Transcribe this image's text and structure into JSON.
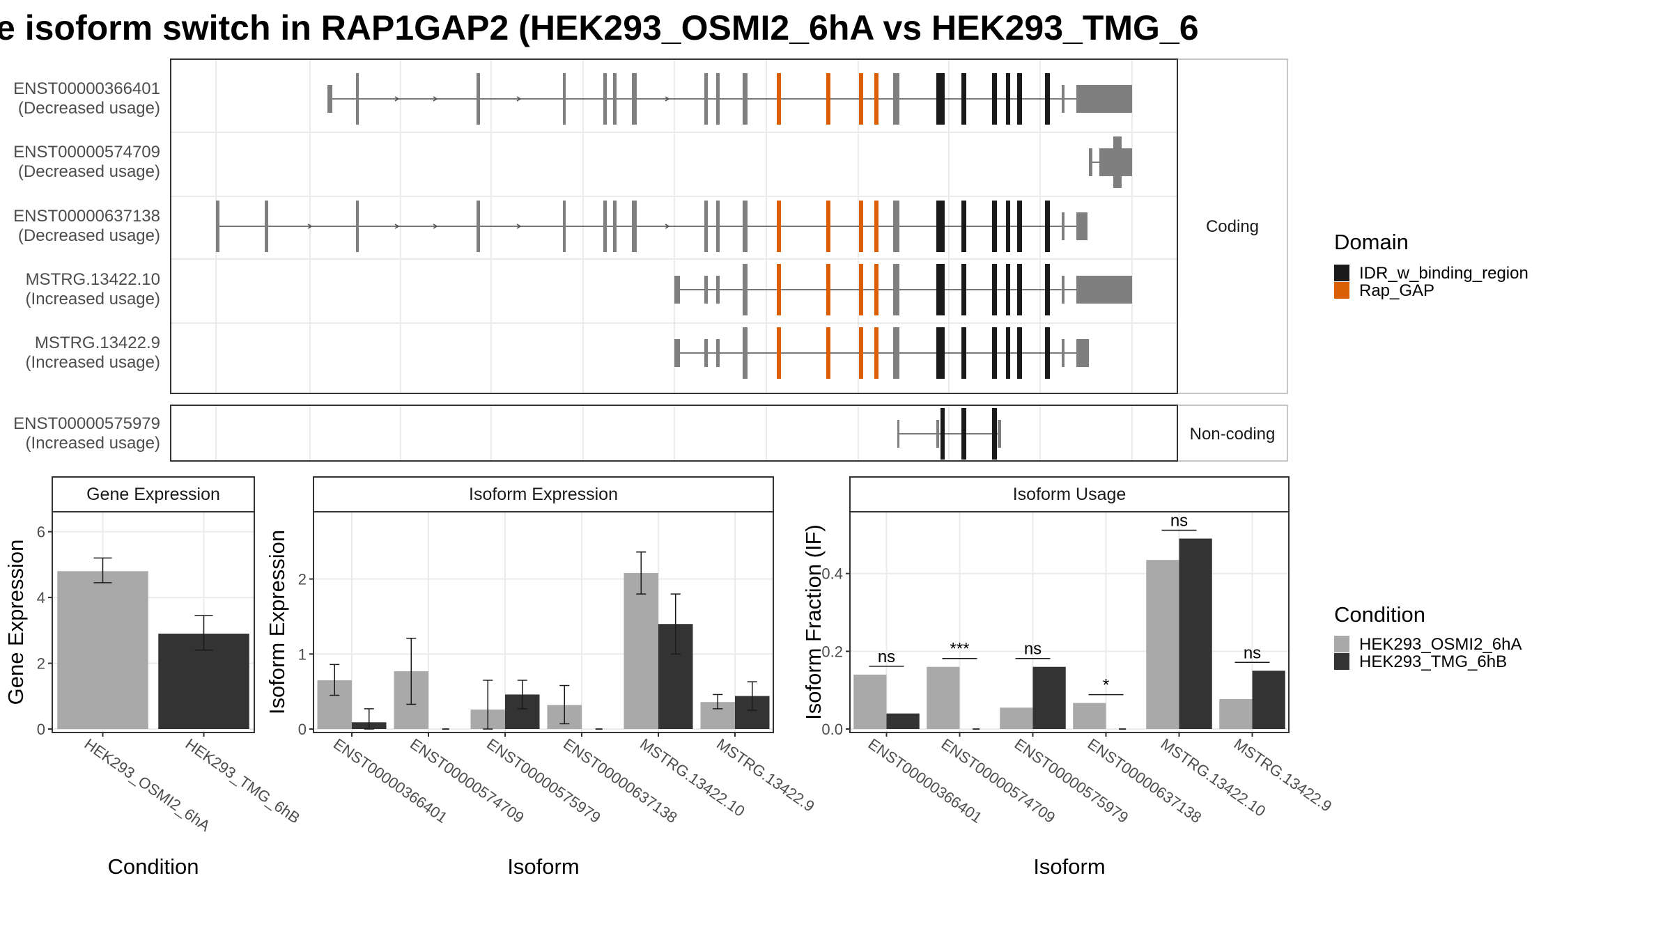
{
  "title": "e isoform switch in RAP1GAP2 (HEK293_OSMI2_6hA vs HEK293_TMG_6",
  "colors": {
    "exon": "#7f7f7f",
    "idr": "#1a1a1a",
    "rapgap": "#d95f02",
    "cond_a": "#a9a9a9",
    "cond_b": "#333333"
  },
  "transcripts": {
    "strip_coding": "Coding",
    "strip_noncoding": "Non-coding",
    "rows": [
      {
        "id": "ENST00000366401",
        "usage": "(Decreased usage)"
      },
      {
        "id": "ENST00000574709",
        "usage": "(Decreased usage)"
      },
      {
        "id": "ENST00000637138",
        "usage": "(Decreased usage)"
      },
      {
        "id": "MSTRG.13422.10",
        "usage": "(Increased usage)"
      },
      {
        "id": "MSTRG.13422.9",
        "usage": "(Increased usage)"
      },
      {
        "id": "ENST00000575979",
        "usage": "(Increased usage)"
      }
    ]
  },
  "legend_domain": {
    "title": "Domain",
    "items": [
      {
        "label": "IDR_w_binding_region",
        "color": "#1a1a1a"
      },
      {
        "label": "Rap_GAP",
        "color": "#d95f02"
      }
    ]
  },
  "legend_condition": {
    "title": "Condition",
    "items": [
      {
        "label": "HEK293_OSMI2_6hA",
        "color": "#a9a9a9"
      },
      {
        "label": "HEK293_TMG_6hB",
        "color": "#333333"
      }
    ]
  },
  "chart_data": [
    {
      "type": "bar",
      "title": "Gene Expression",
      "xlabel": "Condition",
      "ylabel": "Gene Expression",
      "ylim": [
        0,
        6.5
      ],
      "yticks": [
        0,
        2,
        4,
        6
      ],
      "categories": [
        "HEK293_OSMI2_6hA",
        "HEK293_TMG_6hB"
      ],
      "values": [
        4.8,
        2.9
      ],
      "errors": [
        [
          4.45,
          5.2
        ],
        [
          2.4,
          3.45
        ]
      ]
    },
    {
      "type": "bar",
      "title": "Isoform Expression",
      "xlabel": "Isoform",
      "ylabel": "Isoform Expression",
      "ylim": [
        0,
        2.85
      ],
      "yticks": [
        0,
        1,
        2
      ],
      "categories": [
        "ENST00000366401",
        "ENST00000574709",
        "ENST00000575979",
        "ENST00000637138",
        "MSTRG.13422.10",
        "MSTRG.13422.9"
      ],
      "series": [
        {
          "name": "HEK293_OSMI2_6hA",
          "values": [
            0.65,
            0.77,
            0.26,
            0.32,
            2.08,
            0.36
          ],
          "errors": [
            [
              0.45,
              0.86
            ],
            [
              0.33,
              1.21
            ],
            [
              0.0,
              0.65
            ],
            [
              0.07,
              0.58
            ],
            [
              1.8,
              2.36
            ],
            [
              0.27,
              0.46
            ]
          ]
        },
        {
          "name": "HEK293_TMG_6hB",
          "values": [
            0.09,
            0.0,
            0.46,
            0.0,
            1.4,
            0.44
          ],
          "errors": [
            [
              0.0,
              0.27
            ],
            [
              0.0,
              0.0
            ],
            [
              0.27,
              0.65
            ],
            [
              0.0,
              0.0
            ],
            [
              1.0,
              1.8
            ],
            [
              0.25,
              0.63
            ]
          ]
        }
      ]
    },
    {
      "type": "bar",
      "title": "Isoform Usage",
      "xlabel": "Isoform",
      "ylabel": "Isoform Fraction (IF)",
      "ylim": [
        0,
        0.55
      ],
      "yticks": [
        0.0,
        0.2,
        0.4
      ],
      "categories": [
        "ENST00000366401",
        "ENST00000574709",
        "ENST00000575979",
        "ENST00000637138",
        "MSTRG.13422.10",
        "MSTRG.13422.9"
      ],
      "series": [
        {
          "name": "HEK293_OSMI2_6hA",
          "values": [
            0.14,
            0.16,
            0.055,
            0.067,
            0.435,
            0.077
          ]
        },
        {
          "name": "HEK293_TMG_6hB",
          "values": [
            0.04,
            0.0,
            0.16,
            0.0,
            0.49,
            0.15
          ]
        }
      ],
      "significance": [
        "ns",
        "***",
        "ns",
        "*",
        "ns",
        "ns"
      ]
    }
  ]
}
